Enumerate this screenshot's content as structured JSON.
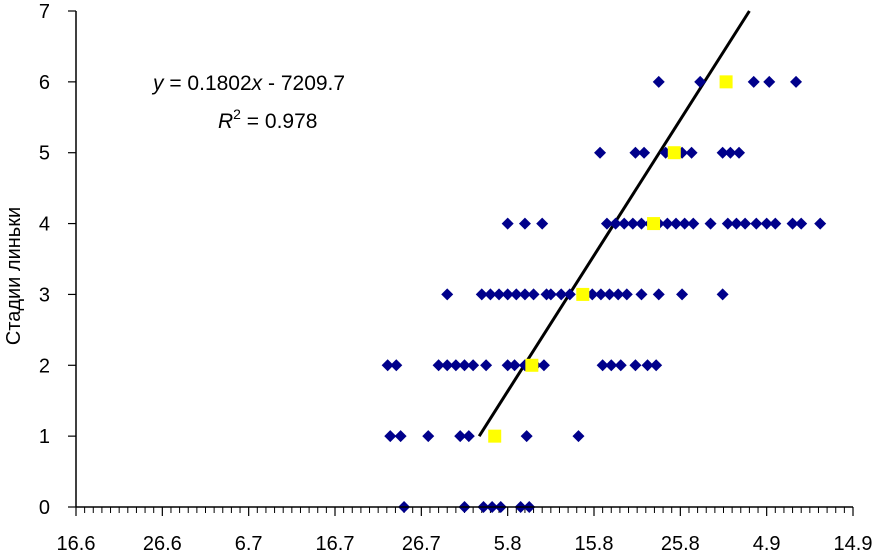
{
  "chart_data": {
    "type": "scatter",
    "ylabel": "Стадии линьки",
    "xlabel": "",
    "ylim": [
      0,
      7
    ],
    "y_ticks": [
      "0",
      "1",
      "2",
      "3",
      "4",
      "5",
      "6",
      "7"
    ],
    "x_tick_labels": [
      "16.6",
      "26.6",
      "6.7",
      "16.7",
      "26.7",
      "5.8",
      "15.8",
      "25.8",
      "4.9",
      "14.9"
    ],
    "equation": {
      "y_var": "y",
      "rhs_pre": " = 0.1802",
      "x_var": "x",
      "rhs_post": " - 7209.7",
      "r_var": "R",
      "r_exp": "2",
      "r_rhs": " = 0.978"
    },
    "x_range": [
      0,
      9
    ],
    "colors": {
      "points": "#00008B",
      "means": "#FFFF00",
      "trend": "#000000"
    },
    "trendline": {
      "x": [
        4.67,
        7.8
      ],
      "y": [
        1,
        7
      ]
    },
    "series": [
      {
        "marker": "diamond",
        "points": [
          [
            3.8,
            0
          ],
          [
            4.5,
            0
          ],
          [
            4.72,
            0
          ],
          [
            4.82,
            0
          ],
          [
            4.92,
            0
          ],
          [
            5.15,
            0
          ],
          [
            5.25,
            0
          ],
          [
            3.64,
            1
          ],
          [
            3.76,
            1
          ],
          [
            4.08,
            1
          ],
          [
            4.45,
            1
          ],
          [
            4.55,
            1
          ],
          [
            5.22,
            1
          ],
          [
            5.82,
            1
          ],
          [
            3.61,
            2
          ],
          [
            3.71,
            2
          ],
          [
            4.2,
            2
          ],
          [
            4.3,
            2
          ],
          [
            4.4,
            2
          ],
          [
            4.5,
            2
          ],
          [
            4.6,
            2
          ],
          [
            4.75,
            2
          ],
          [
            5.0,
            2
          ],
          [
            5.08,
            2
          ],
          [
            5.2,
            2
          ],
          [
            5.32,
            2
          ],
          [
            5.42,
            2
          ],
          [
            6.1,
            2
          ],
          [
            6.2,
            2
          ],
          [
            6.31,
            2
          ],
          [
            6.48,
            2
          ],
          [
            6.62,
            2
          ],
          [
            6.72,
            2
          ],
          [
            4.3,
            3
          ],
          [
            4.7,
            3
          ],
          [
            4.8,
            3
          ],
          [
            4.9,
            3
          ],
          [
            5.0,
            3
          ],
          [
            5.1,
            3
          ],
          [
            5.2,
            3
          ],
          [
            5.3,
            3
          ],
          [
            5.45,
            3
          ],
          [
            5.5,
            3
          ],
          [
            5.62,
            3
          ],
          [
            5.72,
            3
          ],
          [
            5.88,
            3
          ],
          [
            5.98,
            3
          ],
          [
            6.08,
            3
          ],
          [
            6.18,
            3
          ],
          [
            6.28,
            3
          ],
          [
            6.38,
            3
          ],
          [
            6.55,
            3
          ],
          [
            6.75,
            3
          ],
          [
            7.02,
            3
          ],
          [
            7.49,
            3
          ],
          [
            5.0,
            4
          ],
          [
            5.2,
            4
          ],
          [
            5.4,
            4
          ],
          [
            6.15,
            4
          ],
          [
            6.25,
            4
          ],
          [
            6.35,
            4
          ],
          [
            6.45,
            4
          ],
          [
            6.55,
            4
          ],
          [
            6.65,
            4
          ],
          [
            6.75,
            4
          ],
          [
            6.85,
            4
          ],
          [
            6.95,
            4
          ],
          [
            7.05,
            4
          ],
          [
            7.15,
            4
          ],
          [
            7.35,
            4
          ],
          [
            7.55,
            4
          ],
          [
            7.65,
            4
          ],
          [
            7.75,
            4
          ],
          [
            7.88,
            4
          ],
          [
            8.0,
            4
          ],
          [
            8.1,
            4
          ],
          [
            8.3,
            4
          ],
          [
            8.4,
            4
          ],
          [
            8.62,
            4
          ],
          [
            6.07,
            5
          ],
          [
            6.48,
            5
          ],
          [
            6.58,
            5
          ],
          [
            6.83,
            5
          ],
          [
            7.02,
            5
          ],
          [
            7.13,
            5
          ],
          [
            7.49,
            5
          ],
          [
            7.58,
            5
          ],
          [
            7.68,
            5
          ],
          [
            6.75,
            6
          ],
          [
            7.23,
            6
          ],
          [
            7.53,
            6
          ],
          [
            7.85,
            6
          ],
          [
            8.03,
            6
          ],
          [
            8.34,
            6
          ]
        ]
      },
      {
        "marker": "square",
        "points": [
          [
            4.85,
            1
          ],
          [
            5.28,
            2
          ],
          [
            5.87,
            3
          ],
          [
            6.69,
            4
          ],
          [
            6.93,
            5
          ],
          [
            7.53,
            6
          ]
        ]
      }
    ]
  }
}
